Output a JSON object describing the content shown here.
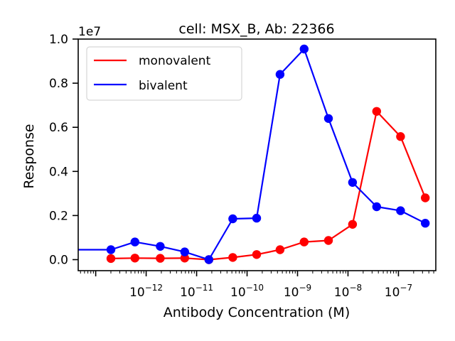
{
  "chart_data": {
    "type": "line",
    "title": "cell: MSX_B, Ab: 22366",
    "xlabel": "Antibody Concentration (M)",
    "ylabel": "Response",
    "y_offset_label": "1e7",
    "x_scale": "log",
    "xlim": [
      4.5e-14,
      5.5e-07
    ],
    "ylim": [
      -0.05,
      1.0
    ],
    "y_ticks": [
      0.0,
      0.2,
      0.4,
      0.6,
      0.8,
      1.0
    ],
    "y_tick_labels": [
      "0.0",
      "0.2",
      "0.4",
      "0.6",
      "0.8",
      "1.0"
    ],
    "x_major_ticks": [
      1e-12,
      1e-11,
      1e-10,
      1e-09,
      1e-08,
      1e-07
    ],
    "x_tick_labels": [
      {
        "base": "10",
        "exp": "−12"
      },
      {
        "base": "10",
        "exp": "−11"
      },
      {
        "base": "10",
        "exp": "−10"
      },
      {
        "base": "10",
        "exp": "−9"
      },
      {
        "base": "10",
        "exp": "−8"
      },
      {
        "base": "10",
        "exp": "−7"
      }
    ],
    "grid": false,
    "legend_position": "top-left",
    "series": [
      {
        "name": "monovalent",
        "color": "#ff0000",
        "x": [
          2e-13,
          6e-13,
          1.9e-12,
          5.8e-12,
          1.75e-11,
          5.2e-11,
          1.55e-10,
          4.5e-10,
          1.35e-09,
          4.1e-09,
          1.23e-08,
          3.7e-08,
          1.1e-07,
          3.4e-07
        ],
        "y": [
          0.005,
          0.007,
          0.006,
          0.007,
          0.0,
          0.01,
          0.023,
          0.045,
          0.08,
          0.087,
          0.16,
          0.672,
          0.558,
          0.28
        ]
      },
      {
        "name": "bivalent",
        "color": "#0000ff",
        "x": [
          4.5e-14,
          2e-13,
          6e-13,
          1.9e-12,
          5.8e-12,
          1.75e-11,
          5.2e-11,
          1.55e-10,
          4.5e-10,
          1.35e-09,
          4.1e-09,
          1.23e-08,
          3.7e-08,
          1.1e-07,
          3.4e-07
        ],
        "y": [
          0.045,
          0.045,
          0.08,
          0.06,
          0.035,
          0.0,
          0.185,
          0.188,
          0.84,
          0.955,
          0.64,
          0.35,
          0.24,
          0.222,
          0.165
        ],
        "markers_from_index": 1
      }
    ]
  }
}
